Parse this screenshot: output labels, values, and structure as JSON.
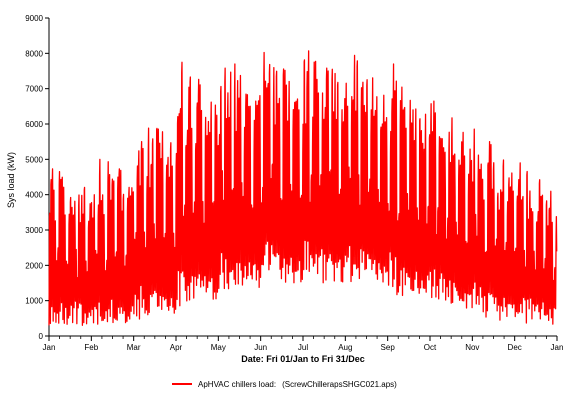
{
  "chart_data": {
    "type": "line",
    "ylabel": "Sys load (kW)",
    "xlabel": "Date: Fri 01/Jan to Fri 31/Dec",
    "ylim": [
      0,
      9000
    ],
    "yticks": [
      0,
      1000,
      2000,
      3000,
      4000,
      5000,
      6000,
      7000,
      8000,
      9000
    ],
    "ytick_labels": [
      "0",
      "1000",
      "2000",
      "3000",
      "4000",
      "5000",
      "6000",
      "7000",
      "8000",
      "9000"
    ],
    "x_ticks": [
      "Jan",
      "Feb",
      "Mar",
      "Apr",
      "May",
      "Jun",
      "Jul",
      "Aug",
      "Sep",
      "Oct",
      "Nov",
      "Dec",
      "Jan"
    ],
    "series": [
      {
        "name": "ApHVAC chillers load:",
        "color": "#ff0000",
        "monthly_daily_min_range": [
          [
            300,
            1300
          ],
          [
            300,
            1300
          ],
          [
            400,
            1500
          ],
          [
            800,
            2000
          ],
          [
            1200,
            2500
          ],
          [
            1500,
            2800
          ],
          [
            1500,
            2800
          ],
          [
            1500,
            2800
          ],
          [
            1200,
            2500
          ],
          [
            900,
            2000
          ],
          [
            500,
            1600
          ],
          [
            300,
            1300
          ]
        ],
        "monthly_daily_max_range": [
          [
            3000,
            5000
          ],
          [
            3200,
            5200
          ],
          [
            4000,
            6200
          ],
          [
            5000,
            8500
          ],
          [
            5500,
            8200
          ],
          [
            5800,
            8200
          ],
          [
            6000,
            8400
          ],
          [
            6000,
            8300
          ],
          [
            5600,
            7900
          ],
          [
            4800,
            7000
          ],
          [
            3800,
            6200
          ],
          [
            3000,
            5200
          ]
        ]
      }
    ]
  },
  "legend": {
    "label": "ApHVAC chillers load:",
    "source": "(ScrewChillerapsSHGC021.aps)"
  }
}
